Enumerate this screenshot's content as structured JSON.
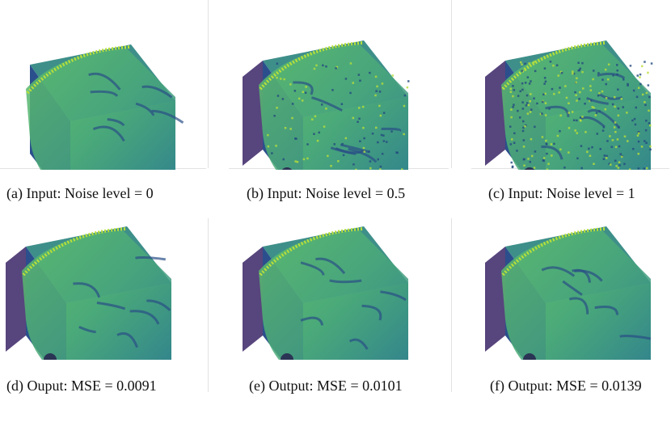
{
  "panels": [
    {
      "id": "a",
      "caption": "(a) Input: Noise level = 0",
      "noise_level": 0
    },
    {
      "id": "b",
      "caption": "(b) Input: Noise level = 0.5",
      "noise_level": 0.5
    },
    {
      "id": "c",
      "caption": "(c) Input: Noise level = 1",
      "noise_level": 1
    },
    {
      "id": "d",
      "caption": "(d) Ouput: MSE = 0.0091",
      "mse": 0.0091
    },
    {
      "id": "e",
      "caption": "(e) Output: MSE = 0.0101",
      "mse": 0.0101
    },
    {
      "id": "f",
      "caption": "(f) Output: MSE = 0.0139",
      "mse": 0.0139
    }
  ],
  "colors": {
    "volume_face": "#49a87a",
    "volume_side": "#2b4f8c",
    "volume_top": "#3e8f8a",
    "volume_dark": "#3a2466",
    "highlight": "#b8df3a"
  }
}
